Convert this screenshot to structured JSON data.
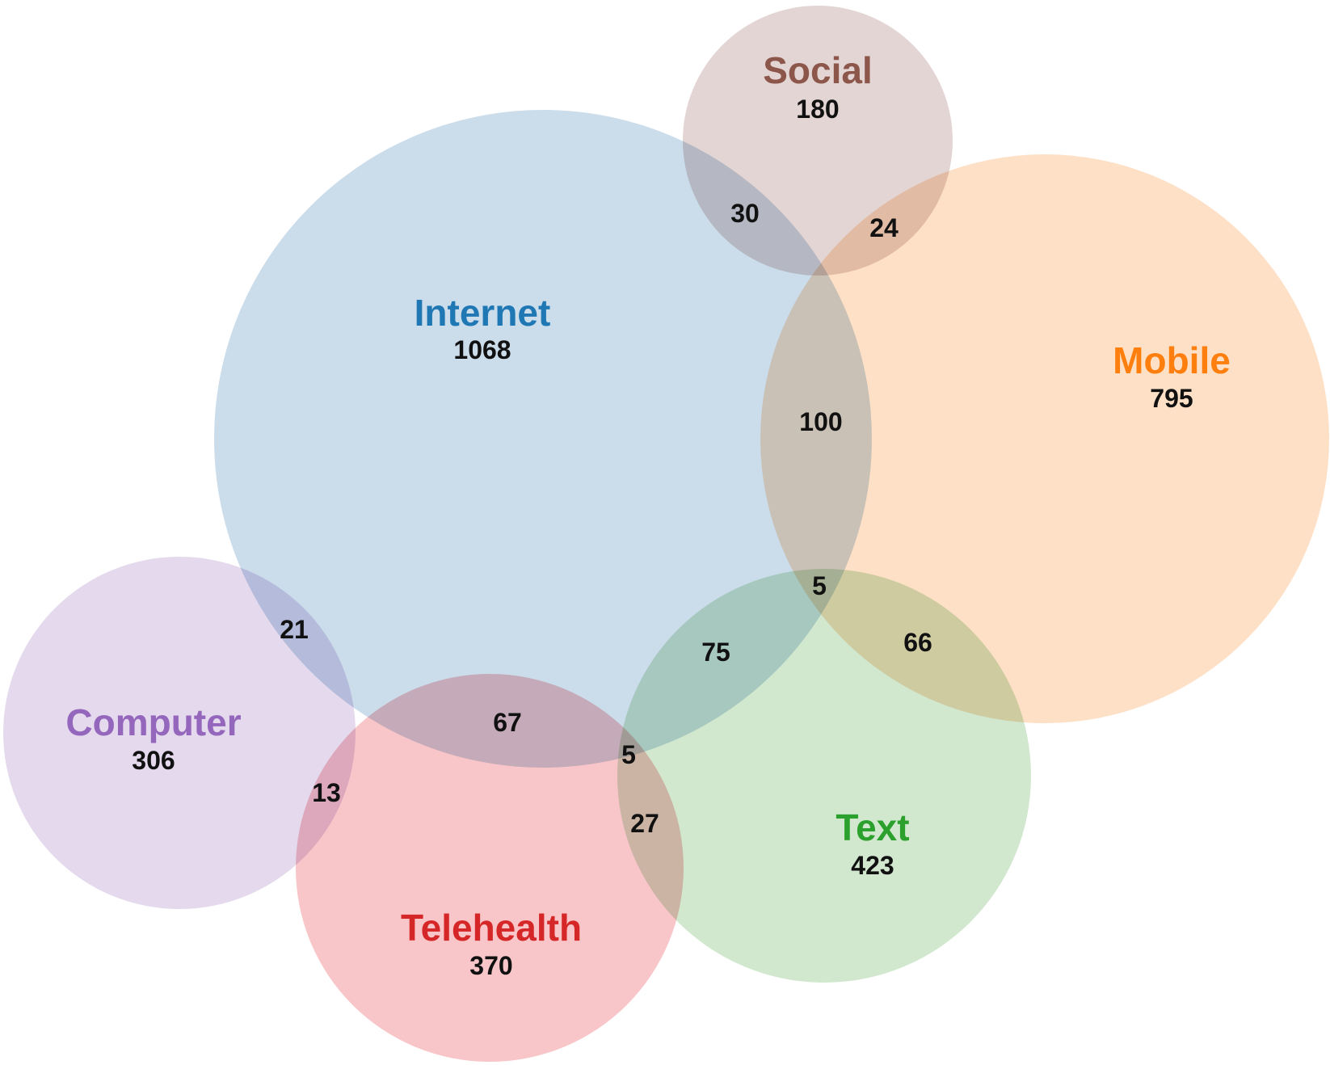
{
  "chart_data": {
    "type": "venn",
    "sets": [
      {
        "id": "internet",
        "name": "Internet",
        "count": "1068",
        "color": "#1f77b4",
        "fill": "#cbdceb"
      },
      {
        "id": "mobile",
        "name": "Mobile",
        "count": "795",
        "color": "#ff7f0e",
        "fill": "#fde0c6"
      },
      {
        "id": "social",
        "name": "Social",
        "count": "180",
        "color": "#8c564b",
        "fill": "#e3d5d3"
      },
      {
        "id": "computer",
        "name": "Computer",
        "count": "306",
        "color": "#9467bd",
        "fill": "#e4d9ed"
      },
      {
        "id": "telehealth",
        "name": "Telehealth",
        "count": "370",
        "color": "#d62728",
        "fill": "#f8c6c9"
      },
      {
        "id": "text",
        "name": "Text",
        "count": "423",
        "color": "#2ca02c",
        "fill": "#d1e8cf"
      }
    ],
    "overlaps": [
      {
        "sets": [
          "internet",
          "social"
        ],
        "value": "30"
      },
      {
        "sets": [
          "social",
          "mobile"
        ],
        "value": "24"
      },
      {
        "sets": [
          "internet",
          "mobile"
        ],
        "value": "100"
      },
      {
        "sets": [
          "internet",
          "mobile",
          "text"
        ],
        "value": "5"
      },
      {
        "sets": [
          "internet",
          "text"
        ],
        "value": "75"
      },
      {
        "sets": [
          "mobile",
          "text"
        ],
        "value": "66"
      },
      {
        "sets": [
          "internet",
          "computer"
        ],
        "value": "21"
      },
      {
        "sets": [
          "internet",
          "telehealth"
        ],
        "value": "67"
      },
      {
        "sets": [
          "internet",
          "telehealth",
          "text"
        ],
        "value": "5"
      },
      {
        "sets": [
          "computer",
          "telehealth"
        ],
        "value": "13"
      },
      {
        "sets": [
          "telehealth",
          "text"
        ],
        "value": "27"
      }
    ]
  }
}
